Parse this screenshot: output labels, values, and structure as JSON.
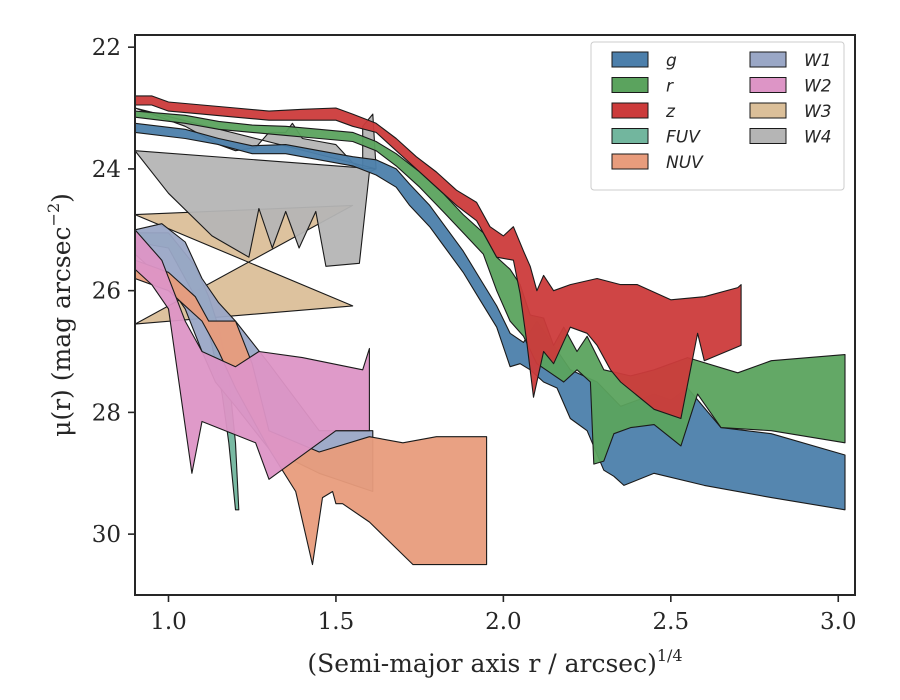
{
  "chart_data": {
    "type": "area",
    "xlabel": "(Semi-major axis r / arcsec)",
    "xlabel_exponent": "1/4",
    "ylabel": "μ(r) (mag arcsec",
    "ylabel_exponent": "−2",
    "ylabel_close": ")",
    "xlim": [
      0.9,
      3.05
    ],
    "ylim": [
      31.0,
      21.8
    ],
    "xticks": [
      1.0,
      1.5,
      2.0,
      2.5,
      3.0
    ],
    "xtick_labels": [
      "1.0",
      "1.5",
      "2.0",
      "2.5",
      "3.0"
    ],
    "yticks": [
      22,
      24,
      26,
      28,
      30
    ],
    "ytick_labels": [
      "22",
      "24",
      "26",
      "28",
      "30"
    ],
    "grid": false,
    "legend_position": "top-right",
    "series": [
      {
        "name": "W3",
        "color": "#dbbf99",
        "upper": [
          [
            0.9,
            24.75
          ],
          [
            1.55,
            24.6
          ]
        ],
        "lower": [
          [
            0.9,
            26.55
          ],
          [
            1.55,
            26.25
          ]
        ]
      },
      {
        "name": "W4",
        "color": "#b5b5b5",
        "upper": [
          [
            0.9,
            23.0
          ],
          [
            1.05,
            23.3
          ],
          [
            1.15,
            23.6
          ],
          [
            1.2,
            23.7
          ],
          [
            1.26,
            23.65
          ],
          [
            1.3,
            23.4
          ],
          [
            1.35,
            23.4
          ],
          [
            1.37,
            23.25
          ],
          [
            1.4,
            23.5
          ],
          [
            1.45,
            23.55
          ],
          [
            1.5,
            23.6
          ],
          [
            1.55,
            23.9
          ],
          [
            1.58,
            24.0
          ],
          [
            1.58,
            23.3
          ],
          [
            1.61,
            23.1
          ],
          [
            1.62,
            24.0
          ]
        ],
        "lower": [
          [
            0.9,
            23.7
          ],
          [
            1.0,
            24.4
          ],
          [
            1.13,
            25.1
          ],
          [
            1.24,
            25.45
          ],
          [
            1.27,
            24.65
          ],
          [
            1.31,
            25.3
          ],
          [
            1.35,
            24.7
          ],
          [
            1.39,
            25.3
          ],
          [
            1.44,
            24.7
          ],
          [
            1.47,
            25.6
          ],
          [
            1.57,
            25.55
          ],
          [
            1.6,
            24.05
          ],
          [
            1.62,
            24.0
          ]
        ]
      },
      {
        "name": "g",
        "color": "#4c7fab",
        "upper": [
          [
            0.9,
            23.25
          ],
          [
            1.05,
            23.35
          ],
          [
            1.15,
            23.5
          ],
          [
            1.25,
            23.62
          ],
          [
            1.35,
            23.6
          ],
          [
            1.45,
            23.7
          ],
          [
            1.55,
            23.8
          ],
          [
            1.62,
            23.85
          ],
          [
            1.68,
            24.0
          ],
          [
            1.72,
            24.25
          ],
          [
            1.78,
            24.6
          ],
          [
            1.82,
            24.9
          ],
          [
            1.88,
            25.35
          ],
          [
            1.93,
            25.8
          ],
          [
            1.98,
            26.25
          ],
          [
            2.02,
            26.7
          ],
          [
            2.06,
            26.85
          ],
          [
            2.1,
            26.5
          ],
          [
            2.15,
            26.9
          ],
          [
            2.2,
            27.3
          ],
          [
            2.28,
            27.5
          ],
          [
            2.35,
            27.9
          ],
          [
            2.45,
            27.7
          ],
          [
            2.5,
            27.8
          ],
          [
            2.55,
            27.6
          ],
          [
            2.65,
            28.25
          ],
          [
            2.8,
            28.35
          ],
          [
            3.02,
            28.7
          ]
        ],
        "lower": [
          [
            3.02,
            29.6
          ],
          [
            2.8,
            29.4
          ],
          [
            2.6,
            29.2
          ],
          [
            2.45,
            29.0
          ],
          [
            2.36,
            29.2
          ],
          [
            2.33,
            29.05
          ],
          [
            2.3,
            28.95
          ],
          [
            2.25,
            28.3
          ],
          [
            2.2,
            28.1
          ],
          [
            2.16,
            27.6
          ],
          [
            2.12,
            27.5
          ],
          [
            2.08,
            27.3
          ],
          [
            2.05,
            27.2
          ],
          [
            2.02,
            27.25
          ],
          [
            1.98,
            26.6
          ],
          [
            1.93,
            26.15
          ],
          [
            1.88,
            25.7
          ],
          [
            1.82,
            25.25
          ],
          [
            1.78,
            24.95
          ],
          [
            1.72,
            24.6
          ],
          [
            1.68,
            24.3
          ],
          [
            1.62,
            24.1
          ],
          [
            1.55,
            23.95
          ],
          [
            1.45,
            23.85
          ],
          [
            1.35,
            23.75
          ],
          [
            1.25,
            23.75
          ],
          [
            1.15,
            23.6
          ],
          [
            1.05,
            23.5
          ],
          [
            0.9,
            23.4
          ]
        ]
      },
      {
        "name": "r",
        "color": "#5ba35e",
        "upper": [
          [
            0.9,
            23.05
          ],
          [
            1.05,
            23.12
          ],
          [
            1.15,
            23.22
          ],
          [
            1.25,
            23.28
          ],
          [
            1.35,
            23.3
          ],
          [
            1.45,
            23.35
          ],
          [
            1.55,
            23.4
          ],
          [
            1.62,
            23.55
          ],
          [
            1.68,
            23.75
          ],
          [
            1.75,
            24.05
          ],
          [
            1.82,
            24.4
          ],
          [
            1.88,
            24.75
          ],
          [
            1.94,
            25.05
          ],
          [
            1.98,
            25.45
          ],
          [
            2.02,
            25.65
          ],
          [
            2.05,
            25.9
          ],
          [
            2.08,
            26.4
          ],
          [
            2.12,
            26.45
          ],
          [
            2.15,
            26.9
          ],
          [
            2.18,
            26.6
          ],
          [
            2.22,
            27.0
          ],
          [
            2.25,
            26.75
          ],
          [
            2.3,
            27.3
          ],
          [
            2.38,
            27.4
          ],
          [
            2.45,
            27.3
          ],
          [
            2.55,
            27.1
          ],
          [
            2.7,
            27.35
          ],
          [
            2.8,
            27.15
          ],
          [
            3.02,
            27.05
          ]
        ],
        "lower": [
          [
            3.02,
            28.5
          ],
          [
            2.8,
            28.3
          ],
          [
            2.65,
            28.25
          ],
          [
            2.58,
            27.7
          ],
          [
            2.53,
            28.55
          ],
          [
            2.45,
            28.2
          ],
          [
            2.38,
            28.25
          ],
          [
            2.33,
            28.35
          ],
          [
            2.3,
            28.8
          ],
          [
            2.27,
            28.85
          ],
          [
            2.26,
            27.5
          ],
          [
            2.22,
            27.3
          ],
          [
            2.18,
            27.5
          ],
          [
            2.14,
            27.35
          ],
          [
            2.1,
            27.2
          ],
          [
            2.06,
            26.75
          ],
          [
            2.02,
            26.5
          ],
          [
            1.98,
            26.0
          ],
          [
            1.94,
            25.4
          ],
          [
            1.88,
            25.05
          ],
          [
            1.82,
            24.7
          ],
          [
            1.75,
            24.3
          ],
          [
            1.68,
            23.95
          ],
          [
            1.62,
            23.7
          ],
          [
            1.55,
            23.55
          ],
          [
            1.45,
            23.5
          ],
          [
            1.35,
            23.45
          ],
          [
            1.25,
            23.4
          ],
          [
            1.15,
            23.35
          ],
          [
            1.05,
            23.25
          ],
          [
            0.9,
            23.15
          ]
        ]
      },
      {
        "name": "z",
        "color": "#cc3b3b",
        "upper": [
          [
            0.9,
            22.8
          ],
          [
            0.95,
            22.8
          ],
          [
            1.0,
            22.9
          ],
          [
            1.1,
            22.95
          ],
          [
            1.2,
            23.0
          ],
          [
            1.3,
            23.05
          ],
          [
            1.4,
            23.02
          ],
          [
            1.5,
            23.0
          ],
          [
            1.55,
            23.1
          ],
          [
            1.62,
            23.25
          ],
          [
            1.68,
            23.5
          ],
          [
            1.74,
            23.8
          ],
          [
            1.8,
            24.05
          ],
          [
            1.86,
            24.35
          ],
          [
            1.92,
            24.55
          ],
          [
            1.96,
            24.95
          ],
          [
            2.0,
            25.1
          ],
          [
            2.03,
            24.95
          ],
          [
            2.06,
            25.35
          ],
          [
            2.08,
            25.6
          ],
          [
            2.1,
            26.0
          ],
          [
            2.12,
            25.75
          ],
          [
            2.15,
            26.0
          ],
          [
            2.2,
            25.9
          ],
          [
            2.28,
            25.8
          ],
          [
            2.35,
            25.9
          ],
          [
            2.4,
            25.9
          ],
          [
            2.5,
            26.15
          ],
          [
            2.6,
            26.1
          ],
          [
            2.7,
            25.95
          ],
          [
            2.71,
            25.9
          ]
        ],
        "lower": [
          [
            2.71,
            26.9
          ],
          [
            2.6,
            27.15
          ],
          [
            2.58,
            26.7
          ],
          [
            2.53,
            28.1
          ],
          [
            2.45,
            27.95
          ],
          [
            2.35,
            27.5
          ],
          [
            2.32,
            27.3
          ],
          [
            2.28,
            26.9
          ],
          [
            2.25,
            26.7
          ],
          [
            2.2,
            26.6
          ],
          [
            2.15,
            27.2
          ],
          [
            2.12,
            27.0
          ],
          [
            2.09,
            27.75
          ],
          [
            2.07,
            26.85
          ],
          [
            2.05,
            26.05
          ],
          [
            2.03,
            25.5
          ],
          [
            1.98,
            25.45
          ],
          [
            1.92,
            24.85
          ],
          [
            1.86,
            24.6
          ],
          [
            1.8,
            24.3
          ],
          [
            1.74,
            24.0
          ],
          [
            1.68,
            23.7
          ],
          [
            1.62,
            23.4
          ],
          [
            1.55,
            23.3
          ],
          [
            1.5,
            23.2
          ],
          [
            1.4,
            23.2
          ],
          [
            1.3,
            23.2
          ],
          [
            1.2,
            23.15
          ],
          [
            1.1,
            23.1
          ],
          [
            1.0,
            23.05
          ],
          [
            0.95,
            22.95
          ],
          [
            0.9,
            22.95
          ]
        ]
      },
      {
        "name": "FUV",
        "color": "#72b69e",
        "upper": [
          [
            0.9,
            25.05
          ],
          [
            1.0,
            25.05
          ],
          [
            1.08,
            25.6
          ],
          [
            1.12,
            26.1
          ],
          [
            1.15,
            26.6
          ],
          [
            1.18,
            27.4
          ],
          [
            1.2,
            28.5
          ],
          [
            1.21,
            29.6
          ]
        ],
        "lower": [
          [
            1.2,
            29.6
          ],
          [
            1.18,
            28.5
          ],
          [
            1.16,
            27.7
          ],
          [
            1.13,
            26.9
          ],
          [
            1.1,
            26.3
          ],
          [
            1.05,
            25.8
          ],
          [
            1.0,
            25.3
          ],
          [
            0.9,
            25.2
          ]
        ]
      },
      {
        "name": "W1",
        "color": "#9aa7c6",
        "upper": [
          [
            0.9,
            25.0
          ],
          [
            0.98,
            24.9
          ],
          [
            1.05,
            25.2
          ],
          [
            1.1,
            25.8
          ],
          [
            1.15,
            26.2
          ],
          [
            1.2,
            26.5
          ],
          [
            1.3,
            27.2
          ],
          [
            1.45,
            28.3
          ],
          [
            1.61,
            28.3
          ]
        ],
        "lower": [
          [
            1.61,
            29.3
          ],
          [
            1.45,
            29.0
          ],
          [
            1.3,
            28.6
          ],
          [
            1.2,
            27.9
          ],
          [
            1.14,
            27.5
          ],
          [
            1.1,
            27.0
          ],
          [
            1.05,
            26.3
          ],
          [
            1.0,
            25.9
          ],
          [
            0.9,
            25.4
          ]
        ]
      },
      {
        "name": "NUV",
        "color": "#e89c7c",
        "upper": [
          [
            0.9,
            25.5
          ],
          [
            1.0,
            25.7
          ],
          [
            1.08,
            26.1
          ],
          [
            1.12,
            26.5
          ],
          [
            1.2,
            26.5
          ],
          [
            1.25,
            27.2
          ],
          [
            1.3,
            28.3
          ],
          [
            1.45,
            28.65
          ],
          [
            1.6,
            28.4
          ],
          [
            1.7,
            28.5
          ],
          [
            1.8,
            28.4
          ],
          [
            1.95,
            28.4
          ]
        ],
        "lower": [
          [
            1.95,
            30.5
          ],
          [
            1.73,
            30.5
          ],
          [
            1.6,
            29.8
          ],
          [
            1.52,
            29.5
          ],
          [
            1.5,
            29.5
          ],
          [
            1.49,
            29.3
          ],
          [
            1.46,
            29.4
          ],
          [
            1.43,
            30.5
          ],
          [
            1.38,
            29.3
          ],
          [
            1.3,
            28.6
          ],
          [
            1.2,
            27.6
          ],
          [
            1.15,
            27.0
          ],
          [
            1.1,
            26.5
          ],
          [
            1.0,
            26.0
          ],
          [
            0.9,
            25.8
          ]
        ]
      },
      {
        "name": "W2",
        "color": "#dd95c6",
        "upper": [
          [
            0.9,
            25.0
          ],
          [
            0.98,
            25.5
          ],
          [
            1.05,
            26.5
          ],
          [
            1.1,
            27.0
          ],
          [
            1.2,
            27.25
          ],
          [
            1.27,
            27.0
          ],
          [
            1.4,
            27.1
          ],
          [
            1.58,
            27.3
          ],
          [
            1.6,
            26.95
          ]
        ],
        "lower": [
          [
            1.6,
            28.3
          ],
          [
            1.5,
            28.3
          ],
          [
            1.3,
            29.1
          ],
          [
            1.26,
            28.5
          ],
          [
            1.1,
            28.15
          ],
          [
            1.07,
            29.0
          ],
          [
            1.0,
            26.3
          ],
          [
            0.95,
            25.9
          ],
          [
            0.9,
            25.65
          ]
        ]
      }
    ],
    "legend": [
      "g",
      "r",
      "z",
      "FUV",
      "NUV",
      "W1",
      "W2",
      "W3",
      "W4"
    ]
  }
}
